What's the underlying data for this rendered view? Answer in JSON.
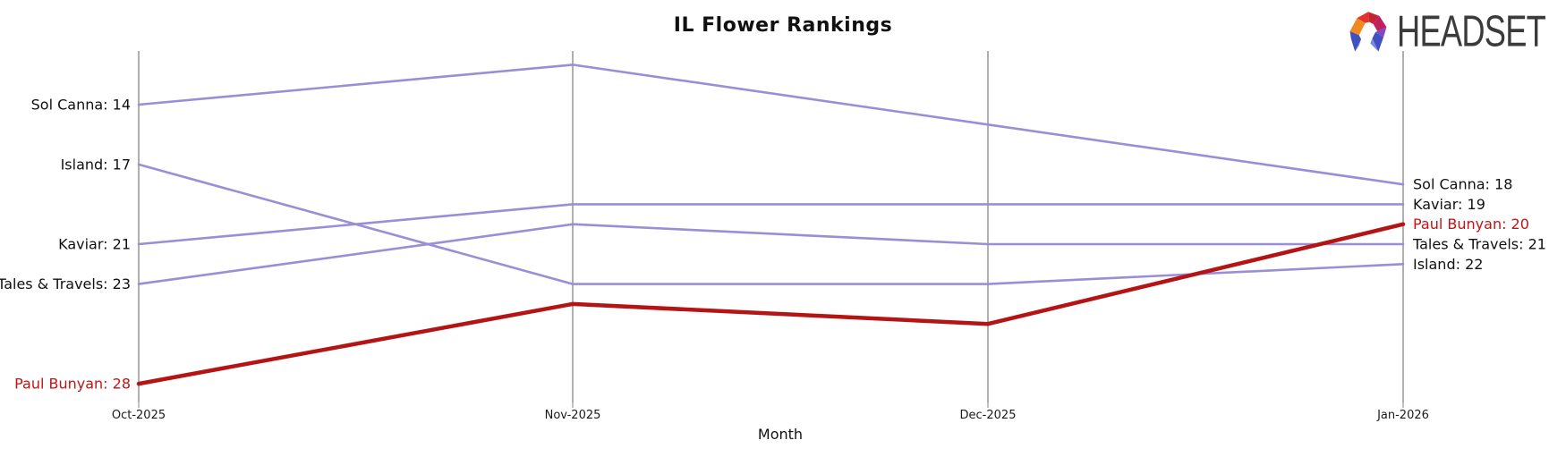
{
  "page": {
    "background": "#ffffff"
  },
  "brand": {
    "name": "HEADSET",
    "icon": "headset-logo-icon"
  },
  "colors": {
    "gridline": "#AFAFAF",
    "tick": "#888888",
    "tick_label": "#1A1A1A",
    "text": "#111111",
    "brand_text": "#3B3B3B",
    "line_purple": "#9A8ED6",
    "line_red": "#B41414",
    "red_label": "#C21414"
  },
  "chart_data": {
    "type": "line",
    "title": "IL Flower Rankings",
    "xlabel": "Month",
    "ylabel": "",
    "y_axis": {
      "unit": "rank",
      "inverted": true,
      "range": [
        12,
        28
      ],
      "axis_line": "hidden"
    },
    "grid": "vertical-only",
    "legend_position": "inline-edge-labels",
    "categories": [
      "Oct-2025",
      "Nov-2025",
      "Dec-2025",
      "Jan-2026"
    ],
    "series": [
      {
        "name": "Sol Canna",
        "values": [
          14,
          12,
          15,
          18
        ],
        "color": "#9A8ED6",
        "label_color": "#111111",
        "label_left": "Sol Canna: 14",
        "label_right": "Sol Canna: 18",
        "highlight": false
      },
      {
        "name": "Island",
        "values": [
          17,
          23,
          23,
          22
        ],
        "color": "#9A8ED6",
        "label_color": "#111111",
        "label_left": "Island: 17",
        "label_right": "Island: 22",
        "highlight": false
      },
      {
        "name": "Kaviar",
        "values": [
          21,
          19,
          19,
          19
        ],
        "color": "#9A8ED6",
        "label_color": "#111111",
        "label_left": "Kaviar: 21",
        "label_right": "Kaviar: 19",
        "highlight": false
      },
      {
        "name": "Tales & Travels",
        "values": [
          23,
          20,
          21,
          21
        ],
        "color": "#9A8ED6",
        "label_color": "#111111",
        "label_left": "Tales & Travels: 23",
        "label_right": "Tales & Travels: 21",
        "highlight": false
      },
      {
        "name": "Paul Bunyan",
        "values": [
          28,
          24,
          25,
          20
        ],
        "color": "#B41414",
        "label_color": "#C21414",
        "label_left": "Paul Bunyan: 28",
        "label_right": "Paul Bunyan: 20",
        "highlight": true
      }
    ]
  }
}
